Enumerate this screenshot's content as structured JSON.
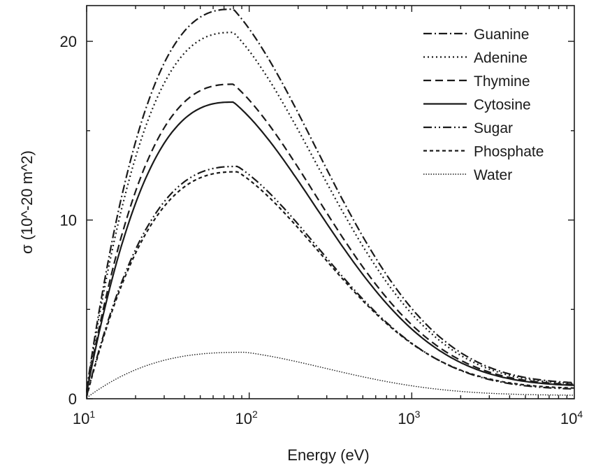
{
  "chart_data": {
    "type": "line",
    "x_scale": "log",
    "xlabel": "Energy (eV)",
    "ylabel": "σ (10^-20 m^2)",
    "xlim": [
      10,
      10000
    ],
    "ylim": [
      0,
      22
    ],
    "x_ticks": [
      {
        "base": "10",
        "exp": "1",
        "value": 10
      },
      {
        "base": "10",
        "exp": "2",
        "value": 100
      },
      {
        "base": "10",
        "exp": "3",
        "value": 1000
      },
      {
        "base": "10",
        "exp": "4",
        "value": 10000
      }
    ],
    "y_ticks": [
      {
        "label": "0",
        "value": 0
      },
      {
        "label": "10",
        "value": 10
      },
      {
        "label": "20",
        "value": 20
      }
    ],
    "grid": false,
    "legend_position": "top-right",
    "series": [
      {
        "name": "Guanine",
        "style": "dashdot",
        "peak": 21.8,
        "peak_energy": 80,
        "start": 0.5,
        "end": 0.9
      },
      {
        "name": "Adenine",
        "style": "dotted",
        "peak": 20.5,
        "peak_energy": 80,
        "start": 0.45,
        "end": 0.85
      },
      {
        "name": "Thymine",
        "style": "dashed",
        "peak": 17.6,
        "peak_energy": 80,
        "start": 0.4,
        "end": 0.8
      },
      {
        "name": "Cytosine",
        "style": "solid",
        "peak": 16.6,
        "peak_energy": 80,
        "start": 0.35,
        "end": 0.75
      },
      {
        "name": "Sugar",
        "style": "dashdotdot",
        "peak": 13.0,
        "peak_energy": 85,
        "start": 0.15,
        "end": 0.55
      },
      {
        "name": "Phosphate",
        "style": "shortdash",
        "peak": 12.7,
        "peak_energy": 85,
        "start": 0.1,
        "end": 0.6
      },
      {
        "name": "Water",
        "style": "fine-dotted",
        "peak": 2.6,
        "peak_energy": 95,
        "start": 0.05,
        "end": 0.2
      }
    ]
  }
}
